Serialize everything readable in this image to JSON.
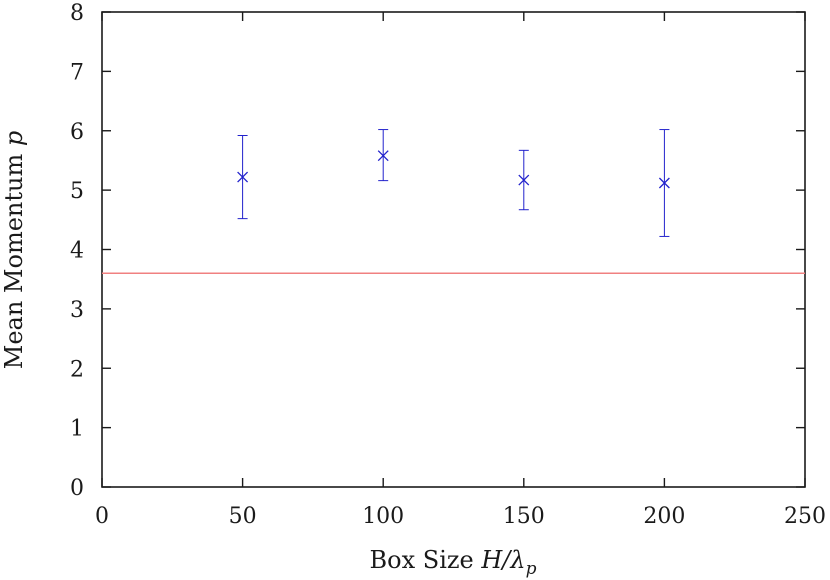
{
  "chart_data": {
    "type": "scatter",
    "xlabel_text": "Box Size ",
    "xlabel_math": "H/λ",
    "xlabel_sub": "p",
    "ylabel_text": "Mean Momentum ",
    "ylabel_math": "p",
    "xlim": [
      0,
      250
    ],
    "ylim": [
      0,
      8
    ],
    "xticks": [
      0,
      50,
      100,
      150,
      200,
      250
    ],
    "yticks": [
      0,
      1,
      2,
      3,
      4,
      5,
      6,
      7,
      8
    ],
    "grid": false,
    "series": [
      {
        "type": "errorbar",
        "marker": "x",
        "color": "#2222cc",
        "points": [
          {
            "x": 50,
            "y": 5.22,
            "ylow": 4.52,
            "yhigh": 5.92
          },
          {
            "x": 100,
            "y": 5.58,
            "ylow": 5.16,
            "yhigh": 6.02
          },
          {
            "x": 150,
            "y": 5.17,
            "ylow": 4.67,
            "yhigh": 5.67
          },
          {
            "x": 200,
            "y": 5.12,
            "ylow": 4.22,
            "yhigh": 6.02
          }
        ]
      },
      {
        "type": "hline",
        "y": 3.6,
        "color": "#f08080"
      }
    ]
  }
}
